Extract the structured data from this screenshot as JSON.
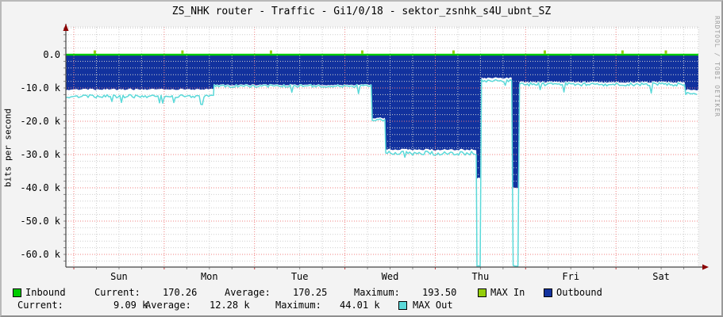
{
  "title": "ZS_NHK router - Traffic - Gi1/0/18 - sektor_zsnhk_s4U_ubnt_SZ",
  "watermark": "RRDTOOL / TOBI OETIKER",
  "y_axis": {
    "label": "bits per second",
    "ticks": [
      "0.0",
      "-10.0 k",
      "-20.0 k",
      "-30.0 k",
      "-40.0 k",
      "-50.0 k",
      "-60.0 k"
    ],
    "tick_values_kbps": [
      0,
      -10,
      -20,
      -30,
      -40,
      -50,
      -60
    ]
  },
  "x_axis": {
    "ticks": [
      "Sun",
      "Mon",
      "Tue",
      "Wed",
      "Thu",
      "Fri",
      "Sat"
    ]
  },
  "legend": {
    "inbound_label": "Inbound",
    "in_current_label": "Current:",
    "in_current": "170.26",
    "in_average_label": "Average:",
    "in_average": "170.25",
    "in_maximum_label": "Maximum:",
    "in_maximum": "193.50",
    "max_in_label": "MAX In",
    "outbound_label": "Outbound",
    "out_current_label": "Current:",
    "out_current": "9.09 k",
    "out_average_label": "Average:",
    "out_average": "12.28 k",
    "out_maximum_label": "Maximum:",
    "out_maximum": "44.01 k",
    "max_out_label": "MAX Out"
  },
  "colors": {
    "inbound": "#00cc00",
    "max_in": "#94ce0a",
    "outbound": "#12329e",
    "max_out": "#5bd9d9",
    "grid_minor": "#cfcfcf",
    "grid_major": "#f08080",
    "axis": "#454545",
    "arrow": "#8b0000",
    "plot_bg": "#ffffff",
    "canvas_bg": "#f3f3f3"
  },
  "chart_data": {
    "type": "area",
    "title": "ZS_NHK router - Traffic - Gi1/0/18 - sektor_zsnhk_s4U_ubnt_SZ",
    "ylabel": "bits per second",
    "ylim_kbps": [
      -63.8,
      8.3
    ],
    "grid": {
      "minor_step_kbps": 2,
      "major_step_kbps": 10,
      "minor_step_days": 0.25,
      "first_day_boundary_offset_days": 0.088
    },
    "x_span_days": 7,
    "day_labels": [
      "Sun",
      "Mon",
      "Tue",
      "Wed",
      "Thu",
      "Fri",
      "Sat"
    ],
    "legend_position": "bottom",
    "series": [
      {
        "name": "Inbound",
        "style": "line",
        "unit": "bits/s",
        "current": 170.26,
        "average": 170.25,
        "maximum": 193.5,
        "note": "flat line at ~0 on this scale"
      },
      {
        "name": "Outbound",
        "style": "area-negative",
        "unit": "bits/s",
        "current": "9.09 k",
        "average": "12.28 k",
        "maximum": "44.01 k",
        "segments_kbps": [
          {
            "from_day": 0.0,
            "to_day": 1.64,
            "kbps": -10.4
          },
          {
            "from_day": 1.64,
            "to_day": 3.39,
            "kbps": -9.0
          },
          {
            "from_day": 3.39,
            "to_day": 3.54,
            "kbps": -19.0
          },
          {
            "from_day": 3.54,
            "to_day": 4.55,
            "kbps": -28.5
          },
          {
            "from_day": 4.55,
            "to_day": 4.6,
            "kbps": -37.0
          },
          {
            "from_day": 4.6,
            "to_day": 4.95,
            "kbps": -7.0
          },
          {
            "from_day": 4.95,
            "to_day": 5.02,
            "kbps": -40.0
          },
          {
            "from_day": 5.02,
            "to_day": 6.86,
            "kbps": -8.2
          },
          {
            "from_day": 6.86,
            "to_day": 7.0,
            "kbps": -10.5
          }
        ]
      },
      {
        "name": "MAX In",
        "style": "spikes-above-zero",
        "spike_kbps": 1.0,
        "spike_days": [
          0.32,
          1.29,
          2.27,
          3.28,
          4.29,
          5.3,
          6.16,
          6.64
        ]
      },
      {
        "name": "MAX Out",
        "style": "line-negative",
        "segments_kbps": [
          {
            "from_day": 0.0,
            "to_day": 1.64,
            "kbps": -12.5,
            "noise": 0.5,
            "dips": true
          },
          {
            "from_day": 1.64,
            "to_day": 3.39,
            "kbps": -9.4,
            "noise": 0.4,
            "dips": true
          },
          {
            "from_day": 3.39,
            "to_day": 3.54,
            "kbps": -19.6,
            "noise": 0.4,
            "dips": false
          },
          {
            "from_day": 3.54,
            "to_day": 4.55,
            "kbps": -29.6,
            "noise": 0.6,
            "dips": true
          },
          {
            "from_day": 4.55,
            "to_day": 4.6,
            "kbps": -63.5,
            "noise": 0.2,
            "dips": false
          },
          {
            "from_day": 4.6,
            "to_day": 4.95,
            "kbps": -7.9,
            "noise": 0.4,
            "dips": true
          },
          {
            "from_day": 4.95,
            "to_day": 5.02,
            "kbps": -63.5,
            "noise": 0.2,
            "dips": false
          },
          {
            "from_day": 5.02,
            "to_day": 6.86,
            "kbps": -8.9,
            "noise": 0.5,
            "dips": true
          },
          {
            "from_day": 6.86,
            "to_day": 7.0,
            "kbps": -11.6,
            "noise": 0.4,
            "dips": false
          }
        ]
      }
    ]
  }
}
